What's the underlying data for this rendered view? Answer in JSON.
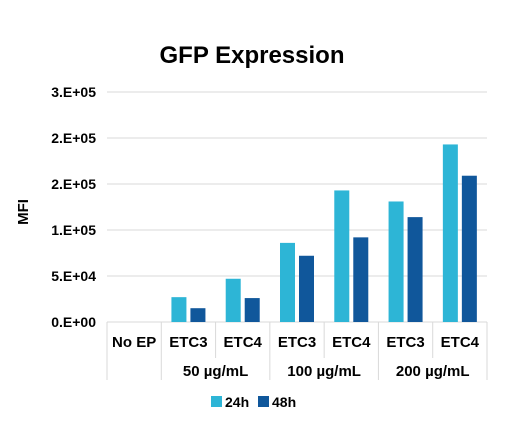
{
  "chart_data": {
    "type": "bar",
    "title": "GFP Expression",
    "ylabel": "MFI",
    "xlabel": "",
    "ylim": [
      0,
      250000
    ],
    "yticks": [
      0,
      50000,
      100000,
      150000,
      200000,
      250000
    ],
    "ytick_labels": [
      "0.E+00",
      "5.E+04",
      "1.E+05",
      "2.E+05",
      "2.E+05",
      "3.E+05"
    ],
    "grid": true,
    "legend_position": "bottom",
    "categories": [
      "No EP",
      "ETC3",
      "ETC4",
      "ETC3",
      "ETC4",
      "ETC3",
      "ETC4"
    ],
    "groups": [
      {
        "label": "",
        "span": [
          0,
          0
        ]
      },
      {
        "label": "50 µg/mL",
        "span": [
          1,
          2
        ]
      },
      {
        "label": "100 µg/mL",
        "span": [
          3,
          4
        ]
      },
      {
        "label": "200 µg/mL",
        "span": [
          5,
          6
        ]
      }
    ],
    "series": [
      {
        "name": "24h",
        "color": "#2DB5D6",
        "values": [
          0,
          27000,
          47000,
          86000,
          143000,
          131000,
          193000
        ]
      },
      {
        "name": "48h",
        "color": "#10579B",
        "values": [
          0,
          15000,
          26000,
          72000,
          92000,
          114000,
          159000
        ]
      }
    ]
  }
}
